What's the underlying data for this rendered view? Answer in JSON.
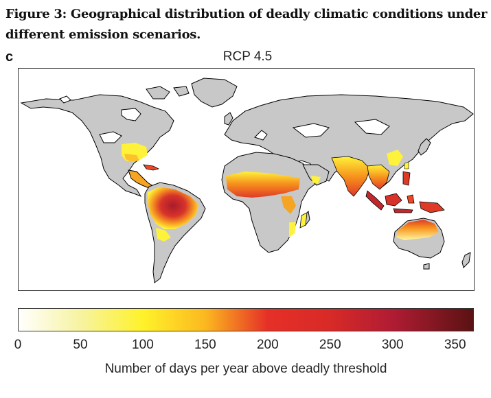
{
  "figure": {
    "title": "Figure 3: Geographical distribution of deadly climatic conditions under different emission scenarios.",
    "panel_label": "c",
    "map_title": "RCP 4.5"
  },
  "colorbar": {
    "label": "Number of days per year above deadly threshold",
    "ticks": [
      "0",
      "50",
      "100",
      "150",
      "200",
      "250",
      "300",
      "350"
    ],
    "tick_values": [
      0,
      50,
      100,
      150,
      200,
      250,
      300,
      350
    ],
    "range": [
      0,
      365
    ],
    "stops": [
      {
        "value": 0,
        "color": "#ffffff"
      },
      {
        "value": 50,
        "color": "#f7f3a0"
      },
      {
        "value": 100,
        "color": "#fff22a"
      },
      {
        "value": 150,
        "color": "#fcb81f"
      },
      {
        "value": 200,
        "color": "#e53027"
      },
      {
        "value": 250,
        "color": "#d82a27"
      },
      {
        "value": 300,
        "color": "#b01c34"
      },
      {
        "value": 365,
        "color": "#5a1212"
      }
    ]
  },
  "map_colors": {
    "land": "#c8c8c8",
    "coast": "#000000",
    "high_risk": "#c0282e",
    "medium_risk": "#f57e1f",
    "low_risk": "#fff23a"
  }
}
